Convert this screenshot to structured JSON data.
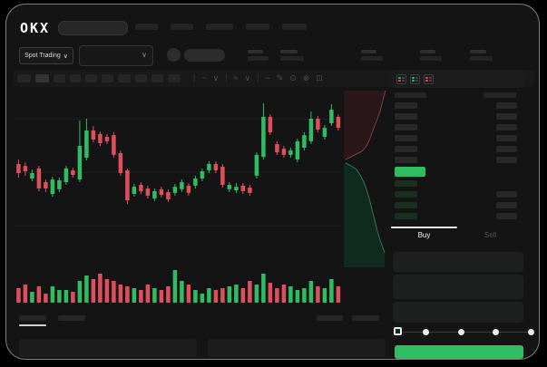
{
  "header": {
    "logo": "OKX",
    "nav_item_widths": [
      25,
      25,
      30,
      26,
      27
    ]
  },
  "subheader": {
    "market_selector": {
      "label": "Spot Trading",
      "chevron": "∨"
    },
    "pair_dropdown_chevron": "∨"
  },
  "chart_toolbar": {
    "timeframes": [
      {
        "w": 15,
        "active": false
      },
      {
        "w": 15,
        "active": true
      },
      {
        "w": 13,
        "active": false
      },
      {
        "w": 12,
        "active": false
      },
      {
        "w": 13,
        "active": false
      },
      {
        "w": 13,
        "active": false
      },
      {
        "w": 14,
        "active": false
      },
      {
        "w": 13,
        "active": false
      },
      {
        "w": 13,
        "active": false
      },
      {
        "w": 14,
        "active": false
      }
    ],
    "icons": [
      {
        "name": "separator",
        "glyph": "|"
      },
      {
        "name": "line-style-icon",
        "glyph": "~"
      },
      {
        "name": "chevron-down-icon",
        "glyph": "∨"
      },
      {
        "name": "separator",
        "glyph": "|"
      },
      {
        "name": "compare-icon",
        "glyph": "≈"
      },
      {
        "name": "chevron-down-icon",
        "glyph": "∨"
      },
      {
        "name": "separator",
        "glyph": "|"
      },
      {
        "name": "indicator-icon",
        "glyph": "~"
      },
      {
        "name": "draw-icon",
        "glyph": "✎"
      },
      {
        "name": "camera-icon",
        "glyph": "⊙"
      },
      {
        "name": "settings-icon",
        "glyph": "⊗"
      },
      {
        "name": "fullscreen-icon",
        "glyph": "⊡"
      }
    ]
  },
  "colors": {
    "green": "#2ebd63",
    "red": "#dd4f5d",
    "bid_tint": "#17301f",
    "placeholder": "#282828",
    "depth_ask_fill": "#2a171a",
    "depth_ask_line": "#7c4046",
    "depth_bid_fill": "#0f2a1e",
    "depth_bid_line": "#2f7456"
  },
  "chart_data": {
    "type": "candlestick",
    "title": "",
    "xlabel": "",
    "ylabel": "",
    "ylim": [
      0,
      100
    ],
    "grid": true,
    "grid_prices": [
      84,
      53,
      22
    ],
    "candles": [
      [
        57.9,
        60.5,
        50.0,
        52.6
      ],
      [
        56.8,
        58.9,
        51.1,
        53.7
      ],
      [
        49.5,
        54.7,
        47.9,
        52.6
      ],
      [
        55.3,
        56.8,
        42.1,
        43.7
      ],
      [
        47.4,
        48.9,
        41.6,
        43.7
      ],
      [
        40.5,
        50.5,
        38.9,
        48.9
      ],
      [
        43.2,
        50.0,
        41.6,
        48.4
      ],
      [
        47.4,
        56.8,
        45.8,
        55.3
      ],
      [
        54.2,
        55.8,
        50.0,
        51.6
      ],
      [
        48.9,
        83.2,
        47.4,
        68.4
      ],
      [
        61.6,
        84.2,
        60.0,
        77.4
      ],
      [
        77.4,
        80.0,
        70.5,
        72.1
      ],
      [
        75.3,
        76.8,
        68.4,
        70.0
      ],
      [
        73.7,
        75.3,
        69.5,
        71.1
      ],
      [
        74.7,
        76.3,
        61.6,
        63.2
      ],
      [
        64.2,
        65.8,
        51.1,
        52.6
      ],
      [
        54.2,
        55.3,
        34.7,
        36.8
      ],
      [
        40.5,
        46.3,
        38.9,
        44.7
      ],
      [
        45.8,
        47.4,
        40.5,
        42.1
      ],
      [
        43.7,
        45.3,
        37.9,
        39.5
      ],
      [
        37.9,
        43.7,
        36.3,
        42.1
      ],
      [
        43.2,
        44.7,
        38.4,
        40.0
      ],
      [
        41.6,
        43.2,
        35.8,
        37.4
      ],
      [
        41.1,
        46.3,
        39.5,
        44.7
      ],
      [
        43.2,
        48.9,
        41.6,
        47.4
      ],
      [
        45.3,
        46.8,
        39.5,
        41.1
      ],
      [
        45.3,
        51.1,
        43.7,
        49.5
      ],
      [
        49.5,
        55.3,
        47.9,
        53.7
      ],
      [
        54.2,
        59.5,
        52.6,
        57.9
      ],
      [
        57.9,
        59.5,
        52.6,
        54.2
      ],
      [
        56.3,
        57.9,
        44.2,
        45.8
      ],
      [
        43.2,
        47.4,
        41.6,
        45.8
      ],
      [
        42.6,
        46.8,
        41.1,
        44.7
      ],
      [
        45.3,
        46.8,
        40.5,
        42.1
      ],
      [
        44.2,
        45.8,
        39.5,
        41.1
      ],
      [
        51.1,
        64.7,
        49.5,
        63.2
      ],
      [
        62.1,
        93.2,
        60.5,
        85.3
      ],
      [
        85.3,
        86.8,
        74.7,
        76.3
      ],
      [
        69.5,
        71.1,
        63.2,
        64.7
      ],
      [
        66.8,
        68.4,
        61.6,
        63.2
      ],
      [
        63.2,
        67.4,
        61.6,
        65.8
      ],
      [
        60.5,
        72.6,
        58.9,
        71.1
      ],
      [
        67.4,
        76.3,
        65.8,
        74.7
      ],
      [
        71.1,
        88.4,
        69.5,
        84.2
      ],
      [
        84.2,
        85.8,
        76.3,
        77.9
      ],
      [
        73.7,
        80.5,
        72.1,
        78.9
      ],
      [
        81.6,
        92.6,
        80.0,
        89.5
      ],
      [
        85.3,
        86.8,
        77.4,
        78.9
      ]
    ],
    "volumes": [
      8,
      10,
      6,
      9,
      5,
      9,
      7,
      7,
      6,
      12,
      15,
      13,
      16,
      13,
      12,
      10,
      9,
      8,
      7,
      10,
      8,
      7,
      9,
      18,
      12,
      10,
      7,
      5,
      8,
      7,
      8,
      9,
      10,
      8,
      12,
      10,
      16,
      11,
      8,
      10,
      9,
      7,
      8,
      12,
      9,
      8,
      13,
      9
    ],
    "volume_ylim": [
      0,
      20
    ]
  },
  "depth": {
    "asks": [
      [
        46,
        3
      ],
      [
        44,
        10
      ],
      [
        42,
        18
      ],
      [
        40,
        26
      ],
      [
        37,
        34
      ],
      [
        34,
        42
      ],
      [
        31,
        50
      ],
      [
        28,
        58
      ],
      [
        25,
        64
      ],
      [
        20,
        70
      ],
      [
        10,
        75
      ],
      [
        2,
        79
      ]
    ],
    "bids": [
      [
        2,
        83
      ],
      [
        8,
        86
      ],
      [
        14,
        90
      ],
      [
        18,
        96
      ],
      [
        22,
        104
      ],
      [
        25,
        112
      ],
      [
        28,
        122
      ],
      [
        31,
        134
      ],
      [
        34,
        146
      ],
      [
        37,
        158
      ],
      [
        40,
        168
      ],
      [
        43,
        176
      ],
      [
        45,
        182
      ]
    ]
  },
  "orderbook": {
    "view_icons": [
      {
        "name": "book-view-both-icon",
        "stripes": [
          "green",
          "red"
        ]
      },
      {
        "name": "book-view-bids-icon",
        "stripes": [
          "green",
          "green"
        ]
      },
      {
        "name": "book-view-asks-icon",
        "stripes": [
          "red",
          "red"
        ]
      }
    ],
    "asks": [
      {
        "left": true,
        "right": true
      },
      {
        "left": true,
        "right": true
      },
      {
        "left": true,
        "right": true
      },
      {
        "left": true,
        "right": true
      },
      {
        "left": true,
        "right": true
      },
      {
        "left": true,
        "right": true
      }
    ],
    "bids": [
      {
        "left": true,
        "right": false
      },
      {
        "left": true,
        "right": true
      },
      {
        "left": true,
        "right": true
      },
      {
        "left": true,
        "right": true
      }
    ]
  },
  "trade_panel": {
    "buy_tab": "Buy",
    "sell_tab": "Sell",
    "active_tab": "Buy",
    "slider_stops": [
      0,
      25,
      50,
      75,
      100
    ],
    "slider_value": 0
  }
}
